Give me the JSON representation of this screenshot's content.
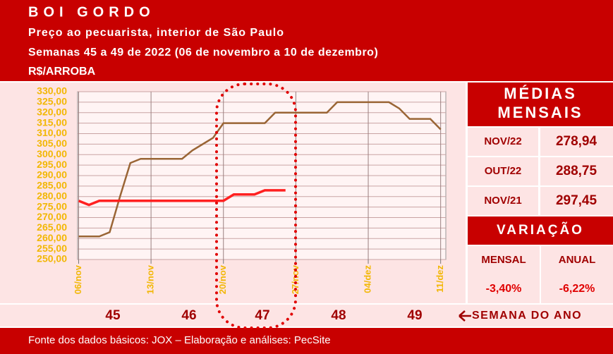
{
  "chart_data": {
    "type": "line",
    "title": "BOI GORDO",
    "subtitle": [
      "Preço ao pecuarista, interior de São Paulo",
      "Semanas 45 a 49 de 2022 (06 de novembro a 10 de dezembro)"
    ],
    "y_unit_label": "R$/ARROBA",
    "xlim": [
      -0.1,
      35.5
    ],
    "xticks": [
      {
        "value": 0,
        "label": "06/nov"
      },
      {
        "value": 7,
        "label": "13/nov"
      },
      {
        "value": 14,
        "label": "20/nov"
      },
      {
        "value": 21,
        "label": "27/nov"
      },
      {
        "value": 28,
        "label": "04/dez"
      },
      {
        "value": 35,
        "label": "11/dez"
      }
    ],
    "ylim": [
      250,
      330
    ],
    "yticks": [
      {
        "value": 250,
        "label": "250,00"
      },
      {
        "value": 255,
        "label": "255,00"
      },
      {
        "value": 260,
        "label": "260,00"
      },
      {
        "value": 265,
        "label": "265,00"
      },
      {
        "value": 270,
        "label": "270,00"
      },
      {
        "value": 275,
        "label": "275,00"
      },
      {
        "value": 280,
        "label": "280,00"
      },
      {
        "value": 285,
        "label": "285,00"
      },
      {
        "value": 290,
        "label": "290,00"
      },
      {
        "value": 295,
        "label": "295,00"
      },
      {
        "value": 300,
        "label": "300,00"
      },
      {
        "value": 305,
        "label": "305,00"
      },
      {
        "value": 310,
        "label": "310,00"
      },
      {
        "value": 315,
        "label": "315,00"
      },
      {
        "value": 320,
        "label": "320,00"
      },
      {
        "value": 325,
        "label": "325,00"
      },
      {
        "value": 330,
        "label": "330,00"
      }
    ],
    "grid": true,
    "series": [
      {
        "color": "#9a6535",
        "x": [
          0,
          1,
          2,
          3,
          4,
          5,
          6,
          7,
          8,
          9,
          10,
          11,
          12,
          13,
          14,
          15,
          16,
          17,
          18,
          19,
          20,
          21,
          22,
          23,
          24,
          25,
          26,
          27,
          28,
          29,
          30,
          31,
          32,
          33,
          34,
          35
        ],
        "values": [
          261,
          261,
          261,
          263,
          280,
          296,
          298,
          298,
          298,
          298,
          298,
          302,
          305,
          308,
          315,
          315,
          315,
          315,
          315,
          320,
          320,
          320,
          320,
          320,
          320,
          325,
          325,
          325,
          325,
          325,
          325,
          322,
          317,
          317,
          317,
          312
        ]
      },
      {
        "color": "#ff2020",
        "x": [
          0,
          1,
          2,
          3,
          4,
          5,
          6,
          7,
          8,
          9,
          10,
          11,
          12,
          13,
          14,
          15,
          16,
          17,
          18,
          19,
          20
        ],
        "values": [
          278,
          276,
          278,
          278,
          278,
          278,
          278,
          278,
          278,
          278,
          278,
          278,
          278,
          278,
          278,
          281,
          281,
          281,
          283,
          283,
          283
        ]
      }
    ],
    "weeks": [
      "45",
      "46",
      "47",
      "48",
      "49"
    ],
    "weeks_label": "SEMANA DO ANO",
    "source": "Fonte dos dados básicos: JOX – Elaboração e análises: PecSite"
  },
  "side_panel": {
    "averages_title": [
      "MÉDIAS",
      "MENSAIS"
    ],
    "averages": [
      [
        "NOV/22",
        "278,94"
      ],
      [
        "OUT/22",
        "288,75"
      ],
      [
        "NOV/21",
        "297,45"
      ]
    ],
    "variation_title": "VARIAÇÃO",
    "variation_headers": [
      "MENSAL",
      "ANUAL"
    ],
    "variation_values": [
      "-3,40%",
      "-6,22%"
    ]
  }
}
